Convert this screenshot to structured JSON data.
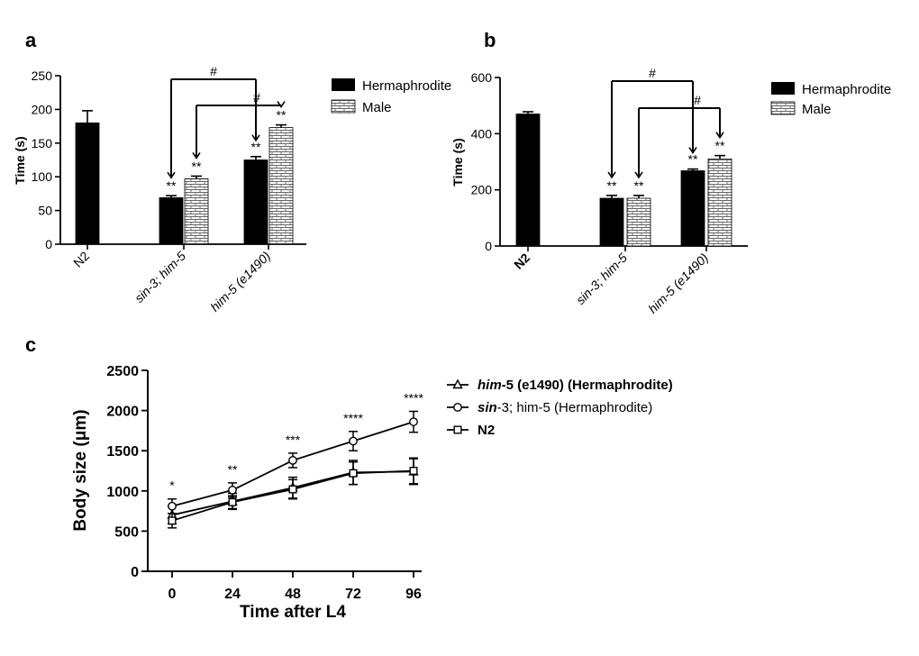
{
  "chart_data": [
    {
      "type": "bar",
      "panel": "a",
      "ylabel": "Time (s)",
      "ylim": [
        0,
        250
      ],
      "yticks": [
        0,
        50,
        100,
        150,
        200,
        250
      ],
      "categories": [
        "N2",
        "sin-3; him-5",
        "him-5 (e1490)"
      ],
      "series": [
        {
          "name": "Hermaphrodite",
          "values": [
            180,
            69,
            125
          ],
          "errors": [
            18,
            3,
            5
          ]
        },
        {
          "name": "Male",
          "values": [
            null,
            97,
            173
          ],
          "errors": [
            null,
            4,
            4
          ]
        }
      ],
      "significance": [
        {
          "category": "sin-3; him-5",
          "series": "Hermaphrodite",
          "label": "**"
        },
        {
          "category": "sin-3; him-5",
          "series": "Male",
          "label": "**"
        },
        {
          "category": "him-5 (e1490)",
          "series": "Hermaphrodite",
          "label": "**"
        },
        {
          "category": "him-5 (e1490)",
          "series": "Male",
          "label": "**"
        }
      ],
      "brackets": [
        {
          "from": "sin-3; him-5 Hermaphrodite",
          "to": "him-5 (e1490) Hermaphrodite",
          "label": "#"
        },
        {
          "from": "sin-3; him-5 Male",
          "to": "him-5 (e1490) Male",
          "label": "#"
        }
      ],
      "legend": [
        "Hermaphrodite",
        "Male"
      ]
    },
    {
      "type": "bar",
      "panel": "b",
      "ylabel": "Time (s)",
      "ylim": [
        0,
        600
      ],
      "yticks": [
        0,
        200,
        400,
        600
      ],
      "categories": [
        "N2",
        "sin-3; him-5",
        "him-5 (e1490)"
      ],
      "series": [
        {
          "name": "Hermaphrodite",
          "values": [
            470,
            170,
            268
          ],
          "errors": [
            8,
            10,
            6
          ]
        },
        {
          "name": "Male",
          "values": [
            null,
            170,
            310
          ],
          "errors": [
            null,
            10,
            12
          ]
        }
      ],
      "significance": [
        {
          "category": "sin-3; him-5",
          "series": "Hermaphrodite",
          "label": "**"
        },
        {
          "category": "sin-3; him-5",
          "series": "Male",
          "label": "**"
        },
        {
          "category": "him-5 (e1490)",
          "series": "Hermaphrodite",
          "label": "**"
        },
        {
          "category": "him-5 (e1490)",
          "series": "Male",
          "label": "**"
        }
      ],
      "brackets": [
        {
          "from": "sin-3; him-5 Hermaphrodite",
          "to": "him-5 (e1490) Hermaphrodite",
          "label": "#"
        },
        {
          "from": "sin-3; him-5 Male",
          "to": "him-5 (e1490) Male",
          "label": "#"
        }
      ],
      "legend": [
        "Hermaphrodite",
        "Male"
      ]
    },
    {
      "type": "line",
      "panel": "c",
      "xlabel": "Time after L4",
      "ylabel": "Body size (μm)",
      "x": [
        0,
        24,
        48,
        72,
        96
      ],
      "ylim": [
        0,
        2500
      ],
      "yticks": [
        0,
        500,
        1000,
        1500,
        2000,
        2500
      ],
      "series": [
        {
          "name": "him-5 (e1490) (Hermaphrodite)",
          "marker": "triangle",
          "values": [
            700,
            870,
            1040,
            1230,
            1240
          ],
          "errors": [
            110,
            100,
            130,
            150,
            160
          ]
        },
        {
          "name": "sin-3; him-5 (Hermaphrodite)",
          "marker": "circle",
          "values": [
            810,
            1010,
            1380,
            1620,
            1860
          ],
          "errors": [
            90,
            90,
            90,
            120,
            130
          ]
        },
        {
          "name": "N2",
          "marker": "square",
          "values": [
            630,
            860,
            1020,
            1220,
            1250
          ],
          "errors": [
            90,
            80,
            120,
            140,
            160
          ]
        }
      ],
      "significance": [
        "*",
        "**",
        "***",
        "****",
        "****"
      ]
    }
  ],
  "labels": {
    "panel_a": "a",
    "panel_b": "b",
    "panel_c": "c",
    "legend_a": [
      "Hermaphrodite",
      "Male"
    ],
    "legend_b": [
      "Hermaphrodite",
      "Male"
    ],
    "legend_c": [
      {
        "italic": "him",
        "rest": "-5 (e1490) (Hermaphrodite)"
      },
      {
        "italic": "sin",
        "rest": "-3; him-5 (Hermaphrodite)"
      },
      {
        "italic": "",
        "rest": "N2"
      }
    ],
    "bracket_label": "#",
    "cat_a": [
      "N2",
      "sin-3; him-5",
      "him-5 (e1490)"
    ],
    "cat_b": [
      "N2",
      "sin-3; him-5",
      "him-5 (e1490)"
    ]
  },
  "colors": {
    "ink": "#000000",
    "bar_fill": "#000000",
    "male_fill": "#ffffff"
  }
}
